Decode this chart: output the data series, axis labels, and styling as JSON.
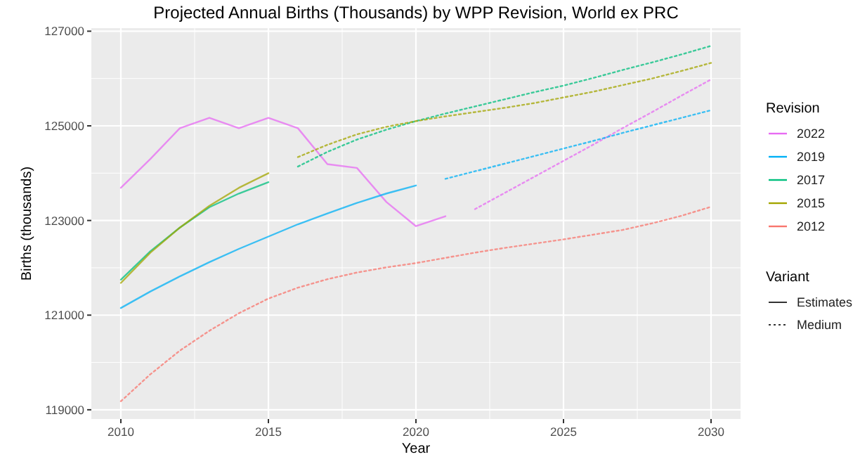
{
  "chart_data": {
    "type": "line",
    "title": "Projected Annual Births (Thousands) by WPP Revision, World ex PRC",
    "xlabel": "Year",
    "ylabel": "Births (thousands)",
    "legend_title": "Revision",
    "legend": "right",
    "grid": true,
    "marker": "none",
    "xlim": [
      2009,
      2031
    ],
    "xticks": [
      2010,
      2015,
      2020,
      2025,
      2030
    ],
    "ylim": [
      118805,
      127065
    ],
    "yticks": [
      119000,
      121000,
      123000,
      125000,
      127000
    ],
    "annotations": [
      "Variant",
      "Estimates",
      "Medium"
    ],
    "series": [
      {
        "name": "2022",
        "color": "#e76bf3",
        "line_style": "solid",
        "x": [
          2010,
          2011,
          2012,
          2013,
          2014,
          2015,
          2016,
          2017,
          2018,
          2019,
          2020,
          2021
        ],
        "values": [
          123690,
          124300,
          124950,
          125170,
          124950,
          125170,
          124950,
          124190,
          124110,
          123390,
          122880,
          123090
        ]
      },
      {
        "color": "#e76bf3",
        "line_style": "dotted",
        "x": [
          2022,
          2023,
          2024,
          2025,
          2026,
          2027,
          2028,
          2029,
          2030
        ],
        "values": [
          123240,
          123580,
          123920,
          124260,
          124600,
          124950,
          125290,
          125640,
          125980
        ]
      },
      {
        "name": "2019",
        "color": "#00b0f6",
        "line_style": "solid",
        "x": [
          2010,
          2011,
          2012,
          2013,
          2014,
          2015,
          2016,
          2017,
          2018,
          2019,
          2020
        ],
        "values": [
          121150,
          121500,
          121820,
          122120,
          122400,
          122660,
          122920,
          123150,
          123370,
          123570,
          123740
        ]
      },
      {
        "color": "#00b0f6",
        "line_style": "dotted",
        "x": [
          2021,
          2022,
          2023,
          2024,
          2025,
          2026,
          2027,
          2028,
          2029,
          2030
        ],
        "values": [
          123880,
          124040,
          124200,
          124360,
          124520,
          124680,
          124850,
          125010,
          125170,
          125330
        ]
      },
      {
        "name": "2017",
        "color": "#00bf7d",
        "line_style": "solid",
        "x": [
          2010,
          2011,
          2012,
          2013,
          2014,
          2015
        ],
        "values": [
          121750,
          122350,
          122850,
          123280,
          123570,
          123810
        ]
      },
      {
        "color": "#00bf7d",
        "line_style": "dotted",
        "x": [
          2016,
          2017,
          2018,
          2019,
          2020,
          2021,
          2022,
          2023,
          2024,
          2025,
          2026,
          2027,
          2028,
          2029,
          2030
        ],
        "values": [
          124140,
          124450,
          124710,
          124920,
          125100,
          125260,
          125410,
          125560,
          125710,
          125850,
          126010,
          126180,
          126340,
          126510,
          126690
        ]
      },
      {
        "name": "2015",
        "color": "#a3a500",
        "line_style": "solid",
        "x": [
          2010,
          2011,
          2012,
          2013,
          2014,
          2015
        ],
        "values": [
          121680,
          122320,
          122850,
          123310,
          123690,
          124000
        ]
      },
      {
        "color": "#a3a500",
        "line_style": "dotted",
        "x": [
          2016,
          2017,
          2018,
          2019,
          2020,
          2021,
          2022,
          2023,
          2024,
          2025,
          2026,
          2027,
          2028,
          2029,
          2030
        ],
        "values": [
          124340,
          124600,
          124820,
          124980,
          125100,
          125200,
          125290,
          125380,
          125480,
          125600,
          125720,
          125860,
          126000,
          126160,
          126330
        ]
      },
      {
        "name": "2012",
        "color": "#f8766d",
        "line_style": "dotted",
        "x": [
          2010,
          2011,
          2012,
          2013,
          2014,
          2015,
          2016,
          2017,
          2018,
          2019,
          2020,
          2021,
          2022,
          2023,
          2024,
          2025,
          2026,
          2027,
          2028,
          2029,
          2030
        ],
        "values": [
          119180,
          119750,
          120250,
          120670,
          121040,
          121350,
          121580,
          121760,
          121900,
          122010,
          122100,
          122210,
          122320,
          122420,
          122510,
          122600,
          122700,
          122800,
          122940,
          123100,
          123290
        ]
      }
    ]
  }
}
